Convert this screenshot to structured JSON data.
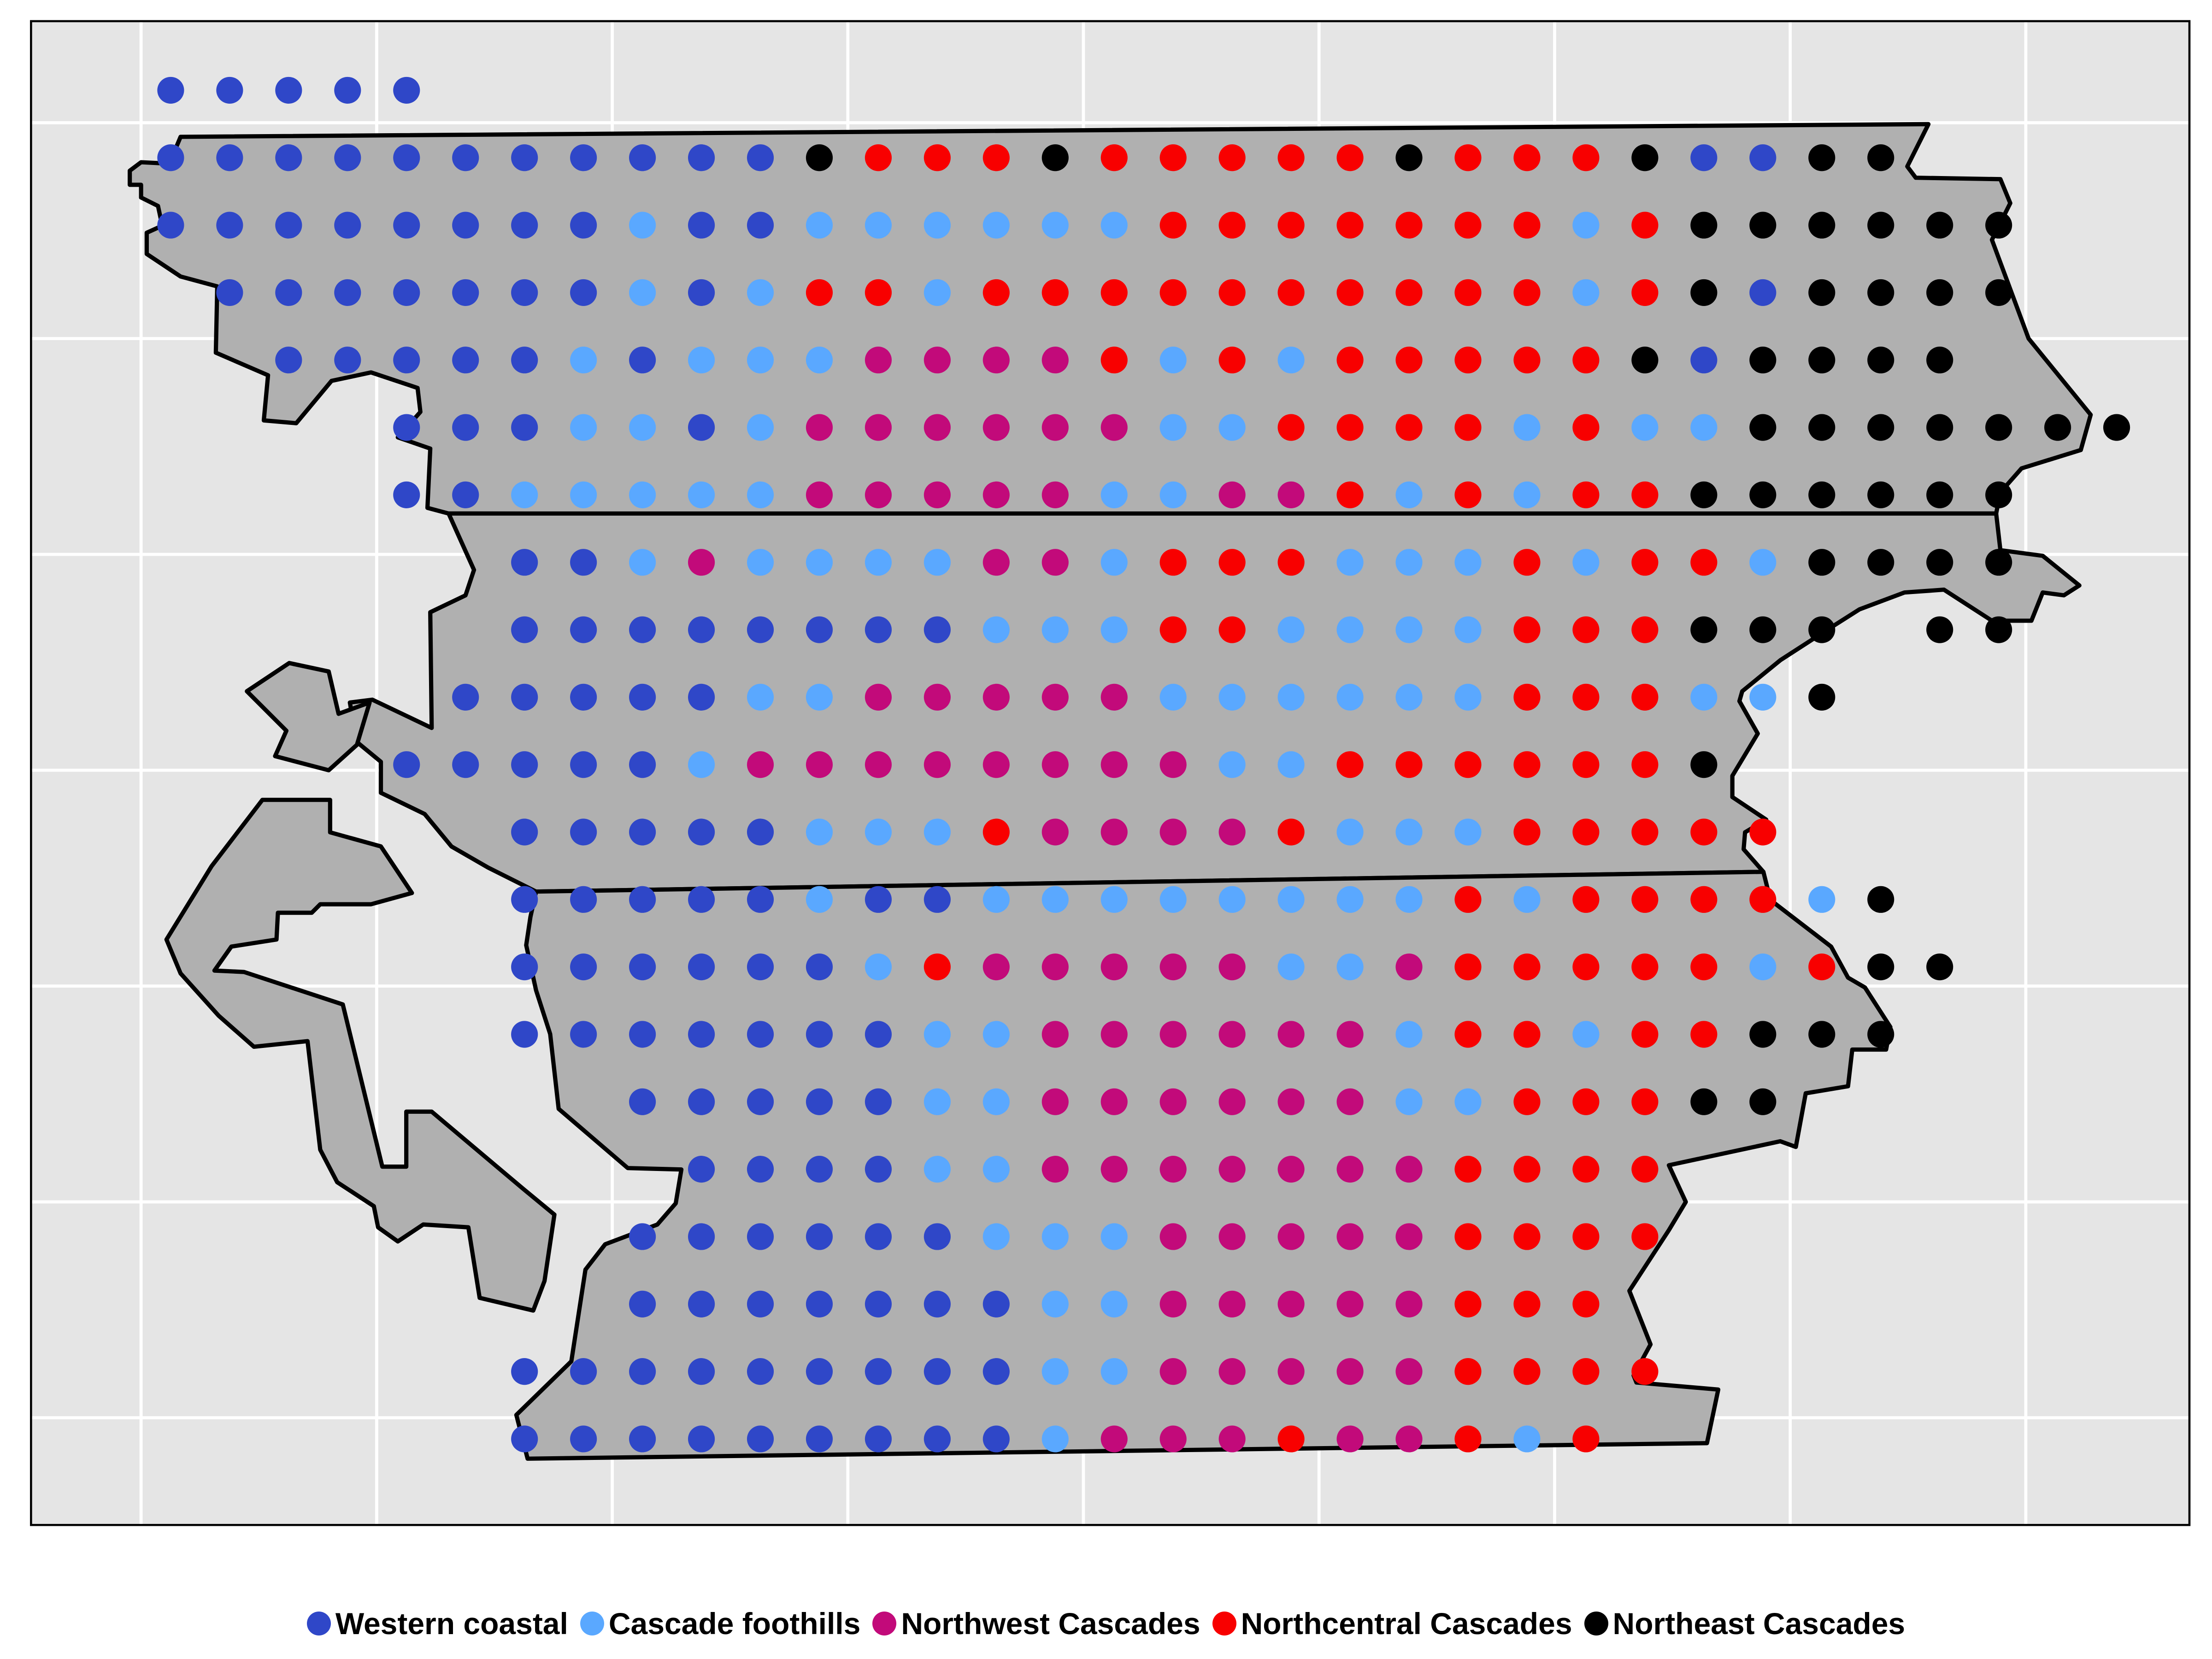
{
  "categories": {
    "W": {
      "label": "Western coastal",
      "color": "#2f47c8"
    },
    "F": {
      "label": "Cascade foothills",
      "color": "#5aa8ff"
    },
    "N": {
      "label": "Northwest Cascades",
      "color": "#c20a7a"
    },
    "C": {
      "label": "Northcentral Cascades",
      "color": "#f80000"
    },
    "E": {
      "label": "Northeast Cascades",
      "color": "#000000"
    }
  },
  "legend_order": [
    "W",
    "F",
    "N",
    "C",
    "E"
  ],
  "grid": {
    "rows": [
      {
        "start": 0,
        "codes": "WWWWW"
      },
      {
        "start": 0,
        "codes": "WWWWWWWWWWWECCCECCCCCECCCEWWEE"
      },
      {
        "start": 0,
        "codes": "WWWWWWWWFWWFFFFFFCCCCCCCFCEEEEEE"
      },
      {
        "start": 1,
        "codes": "WWWWWWWFWFCCFCCCCCCCCCCFCEWEEEE"
      },
      {
        "start": 2,
        "codes": "WWWWWFWFFFNNNNCFCFCCCCCEWEEEE"
      },
      {
        "start": 4,
        "codes": "WWWFFWFNNNNNNFFCCCCFCFFEEEEEEE"
      },
      {
        "start": 4,
        "codes": "WWFFFFFNNNNNFFNNCFCFCCEEEEEE"
      },
      {
        "start": 6,
        "codes": "WWFNFFFFNNFCCCFFFCFCCFEEEE"
      },
      {
        "start": 6,
        "codes": "WWWWWWWWFFFCCFFFFCCCEEE-EE"
      },
      {
        "start": 5,
        "codes": "WWWWWFFNNNNNFFFFFFCCCFFE"
      },
      {
        "start": 4,
        "codes": "WWWWWFNNNNNNNNFFCCCCCCE"
      },
      {
        "start": 6,
        "codes": "WWWWWFFFCNNNNCFFFCCCCC"
      },
      {
        "start": 6,
        "codes": "WWWWWFWWFFFFFFFFCFCCCCFE"
      },
      {
        "start": 6,
        "codes": "WWWWWWFCNNNNNFFNCCCCCFCEE"
      },
      {
        "start": 6,
        "codes": "WWWWWWWFFNNNNNNFCCFCCEEE"
      },
      {
        "start": 8,
        "codes": "WWWWWFFNNNNNNFFCCCEE"
      },
      {
        "start": 9,
        "codes": "WWWWFFNNNNNNNCCCC"
      },
      {
        "start": 8,
        "codes": "WWWWWWFFFNNNNNCCCC"
      },
      {
        "start": 8,
        "codes": "WWWWWWWFFNNNNNCCC"
      },
      {
        "start": 6,
        "codes": "WWWWWWWWWFFNNNNNCCCC"
      },
      {
        "start": 6,
        "codes": "WWWWWWWWWFNNNCNNCFC"
      }
    ]
  }
}
